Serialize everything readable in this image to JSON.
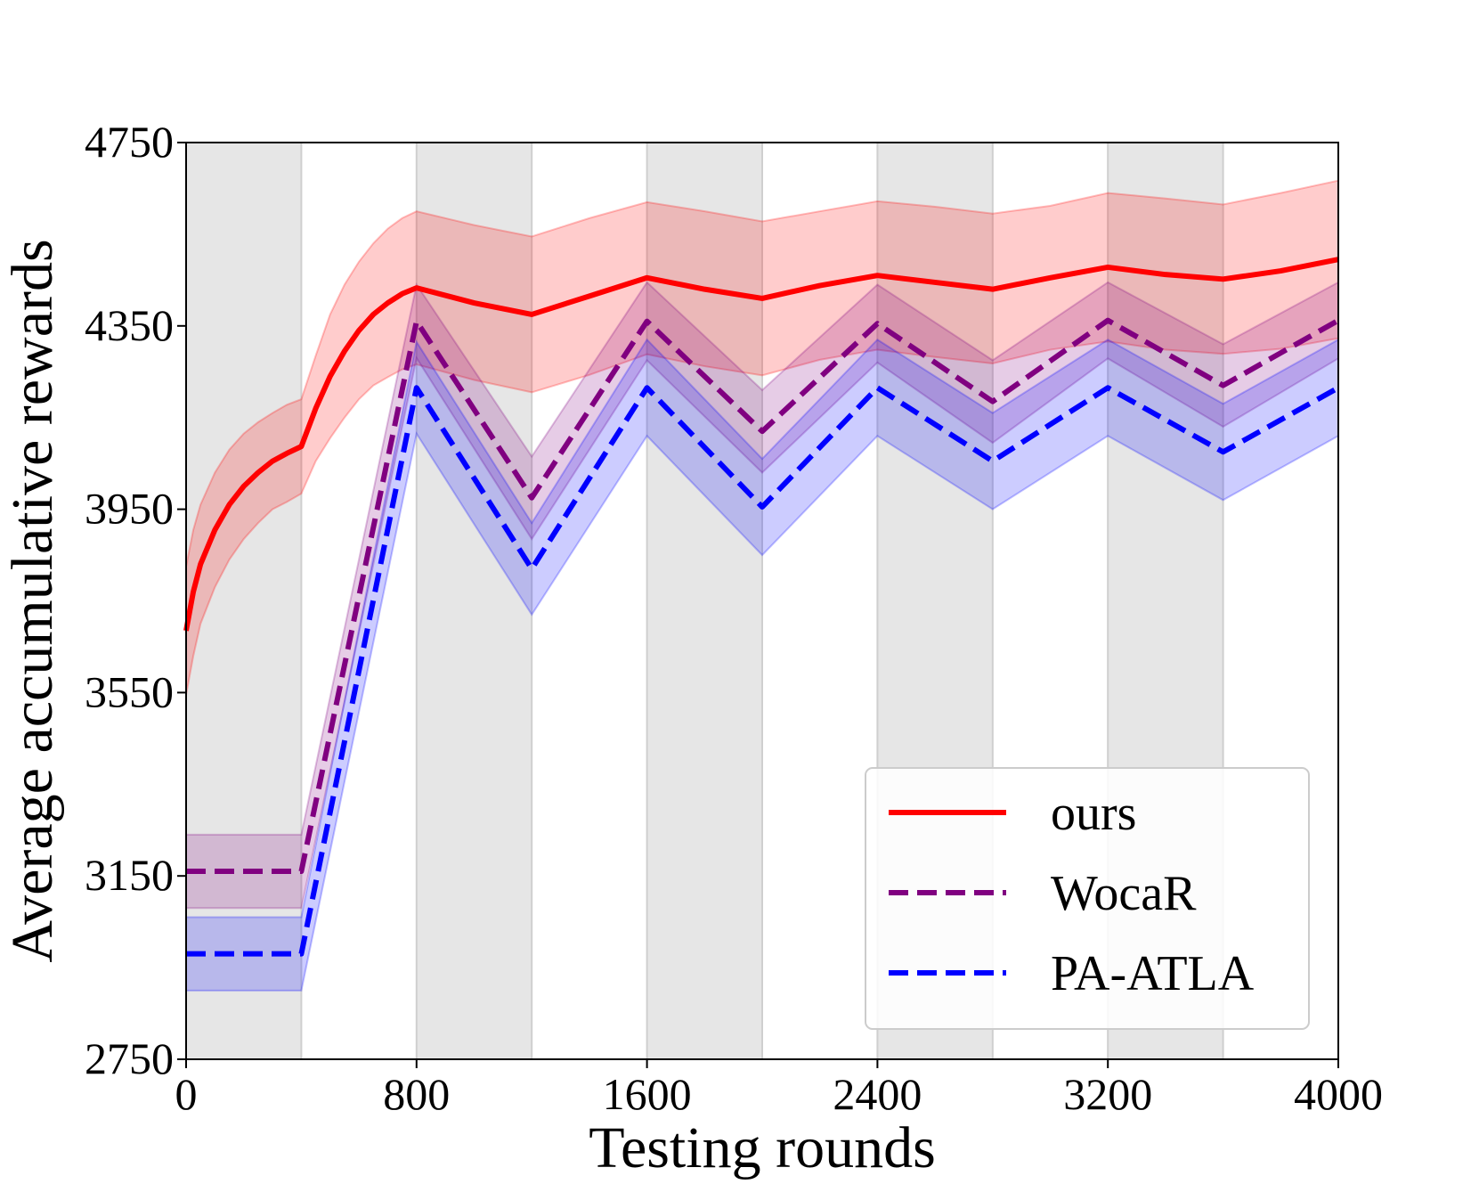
{
  "chart_data": {
    "type": "line",
    "xlabel": "Testing rounds",
    "ylabel": "Average accumulative rewards",
    "xlim": [
      0,
      4000
    ],
    "ylim": [
      2750,
      4750
    ],
    "xticks": [
      0,
      800,
      1600,
      2400,
      3200,
      4000
    ],
    "yticks": [
      2750,
      3150,
      3550,
      3950,
      4350,
      4750
    ],
    "xtick_labels": [
      "0",
      "800",
      "1600",
      "2400",
      "3200",
      "4000"
    ],
    "ytick_labels": [
      "2750",
      "3150",
      "3550",
      "3950",
      "4350",
      "4750"
    ],
    "grid": false,
    "shaded_x_ranges": [
      [
        0,
        400
      ],
      [
        800,
        1200
      ],
      [
        1600,
        2000
      ],
      [
        2400,
        2800
      ],
      [
        3200,
        3600
      ]
    ],
    "legend_position": "lower-right",
    "series": [
      {
        "name": "ours",
        "color": "#ff0000",
        "style": "solid",
        "x": [
          0,
          25,
          50,
          100,
          150,
          200,
          250,
          300,
          350,
          400,
          450,
          500,
          550,
          600,
          650,
          700,
          750,
          800,
          1000,
          1200,
          1400,
          1600,
          1800,
          2000,
          2200,
          2400,
          2600,
          2800,
          3000,
          3200,
          3400,
          3600,
          3800,
          4000
        ],
        "y": [
          3685,
          3770,
          3830,
          3905,
          3960,
          4000,
          4030,
          4055,
          4072,
          4087,
          4170,
          4240,
          4295,
          4340,
          4375,
          4400,
          4420,
          4433,
          4400,
          4375,
          4415,
          4455,
          4430,
          4410,
          4438,
          4460,
          4445,
          4430,
          4455,
          4478,
          4462,
          4452,
          4470,
          4495
        ],
        "upper": [
          3825,
          3905,
          3960,
          4030,
          4080,
          4115,
          4140,
          4160,
          4178,
          4190,
          4285,
          4375,
          4440,
          4490,
          4530,
          4562,
          4585,
          4600,
          4570,
          4545,
          4585,
          4620,
          4600,
          4578,
          4600,
          4622,
          4610,
          4595,
          4612,
          4640,
          4628,
          4615,
          4640,
          4667
        ],
        "lower": [
          3545,
          3630,
          3700,
          3780,
          3840,
          3885,
          3920,
          3950,
          3966,
          3984,
          4055,
          4105,
          4150,
          4190,
          4220,
          4238,
          4255,
          4266,
          4232,
          4205,
          4243,
          4288,
          4262,
          4242,
          4276,
          4298,
          4282,
          4268,
          4298,
          4316,
          4298,
          4289,
          4300,
          4323
        ]
      },
      {
        "name": "WocaR",
        "color": "#800080",
        "style": "dashed",
        "x": [
          0,
          400,
          800,
          1200,
          1600,
          2000,
          2400,
          2800,
          3200,
          3600,
          4000
        ],
        "y": [
          3160,
          3160,
          4360,
          3975,
          4360,
          4120,
          4355,
          4185,
          4362,
          4220,
          4362
        ],
        "upper": [
          3240,
          3240,
          4440,
          4065,
          4445,
          4210,
          4440,
          4275,
          4445,
          4310,
          4445
        ],
        "lower": [
          3080,
          3080,
          4280,
          3885,
          4275,
          4030,
          4270,
          4095,
          4279,
          4130,
          4279
        ]
      },
      {
        "name": "PA-ATLA",
        "color": "#0000ff",
        "style": "dashed",
        "x": [
          0,
          400,
          800,
          1200,
          1600,
          2000,
          2400,
          2800,
          3200,
          3600,
          4000
        ],
        "y": [
          2980,
          2980,
          4215,
          3820,
          4215,
          3955,
          4215,
          4055,
          4215,
          4075,
          4215
        ],
        "upper": [
          3060,
          3060,
          4315,
          3920,
          4320,
          4060,
          4320,
          4160,
          4320,
          4180,
          4320
        ],
        "lower": [
          2900,
          2900,
          4115,
          3720,
          4110,
          3850,
          4110,
          3950,
          4110,
          3970,
          4110
        ]
      }
    ]
  }
}
